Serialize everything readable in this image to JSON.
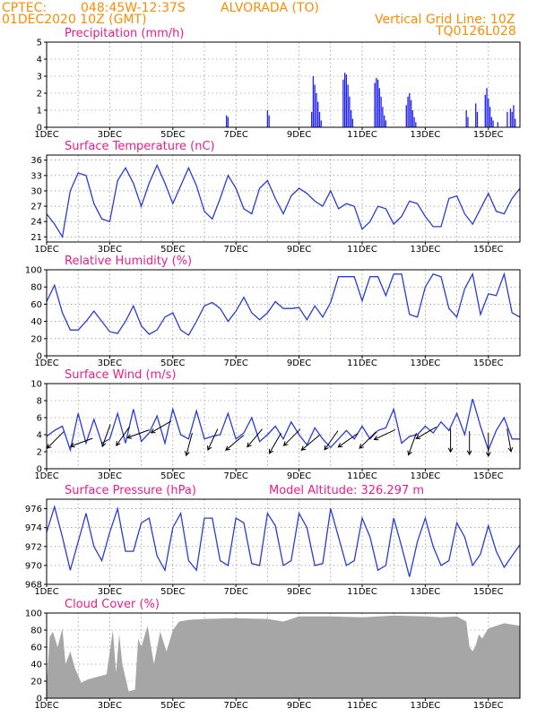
{
  "header": {
    "source_prefix": "CPTEC:",
    "coords": "048:45W-12:37S",
    "location": "ALVORADA (TO)",
    "run": "01DEC2020 10Z (GMT)",
    "grid_note": "Vertical Grid Line: 10Z",
    "code": "TQ0126L028"
  },
  "model_altitude": "Model Altitude: 326.297 m",
  "x_ticks": [
    "1DEC",
    "3DEC",
    "5DEC",
    "7DEC",
    "9DEC",
    "11DEC",
    "13DEC",
    "15DEC"
  ],
  "x_range_days": [
    0,
    15
  ],
  "colors": {
    "series": "#2a3cd8",
    "precip": "#2424f0",
    "cloud": "#a6a6a6",
    "title": "#ee1c8c",
    "header": "#ff8c00"
  },
  "chart_data": [
    {
      "id": "precip",
      "type": "bar",
      "title": "Precipitation (mm/h)",
      "ylim": [
        0,
        5
      ],
      "yticks": [
        0,
        1,
        2,
        3,
        4,
        5
      ],
      "x": [
        5.7,
        5.75,
        7.0,
        7.05,
        8.4,
        8.45,
        8.5,
        8.55,
        8.6,
        8.65,
        8.7,
        9.4,
        9.45,
        9.5,
        9.55,
        9.6,
        9.65,
        9.7,
        10.4,
        10.45,
        10.5,
        10.55,
        10.6,
        10.65,
        10.7,
        10.75,
        11.4,
        11.45,
        11.5,
        11.55,
        11.6,
        11.65,
        11.7,
        13.3,
        13.35,
        13.6,
        13.65,
        13.9,
        13.95,
        14.0,
        14.05,
        14.1,
        14.15,
        14.3,
        14.6,
        14.7,
        14.75,
        14.8,
        14.85
      ],
      "values": [
        0.7,
        0.6,
        1.0,
        0.7,
        0.9,
        3.0,
        2.5,
        2.0,
        1.5,
        0.9,
        0.4,
        2.8,
        3.2,
        3.1,
        2.5,
        1.8,
        1.0,
        0.5,
        2.6,
        2.9,
        2.8,
        2.3,
        1.8,
        1.2,
        0.7,
        0.4,
        1.3,
        1.8,
        2.0,
        1.6,
        1.0,
        0.6,
        0.3,
        1.0,
        0.6,
        1.4,
        0.9,
        1.9,
        2.3,
        1.7,
        1.2,
        0.6,
        0.4,
        0.3,
        0.9,
        1.1,
        0.9,
        1.3,
        0.5
      ]
    },
    {
      "id": "temp",
      "type": "line",
      "title": "Surface Temperature (nC)",
      "ylim": [
        20,
        37
      ],
      "yticks": [
        21,
        24,
        27,
        30,
        33,
        36
      ],
      "x": [
        0,
        0.25,
        0.5,
        0.75,
        1,
        1.25,
        1.5,
        1.75,
        2,
        2.25,
        2.5,
        2.75,
        3,
        3.25,
        3.5,
        3.75,
        4,
        4.25,
        4.5,
        4.75,
        5,
        5.25,
        5.5,
        5.75,
        6,
        6.25,
        6.5,
        6.75,
        7,
        7.25,
        7.5,
        7.75,
        8,
        8.25,
        8.5,
        8.75,
        9,
        9.25,
        9.5,
        9.75,
        10,
        10.25,
        10.5,
        10.75,
        11,
        11.25,
        11.5,
        11.75,
        12,
        12.25,
        12.5,
        12.75,
        13,
        13.25,
        13.5,
        13.75,
        14,
        14.25,
        14.5,
        14.75,
        15
      ],
      "values": [
        25.5,
        23.5,
        21,
        30,
        33.5,
        33,
        27.5,
        24.5,
        24,
        32,
        34.5,
        31.5,
        27,
        31.5,
        35,
        31.5,
        27.5,
        31,
        34.5,
        31,
        26,
        24.5,
        28.5,
        33,
        30.5,
        26.5,
        25.5,
        30.5,
        32,
        28.5,
        25.5,
        29,
        30.5,
        29.5,
        28,
        27,
        30,
        26.5,
        27.5,
        27,
        22.5,
        24,
        27,
        26.5,
        23.5,
        25,
        28,
        27.5,
        25,
        23,
        23,
        28.5,
        29,
        25.5,
        23.5,
        26.5,
        29.5,
        26,
        25.5,
        28.5,
        30.5
      ]
    },
    {
      "id": "rh",
      "type": "line",
      "title": "Relative Humidity (%)",
      "ylim": [
        0,
        100
      ],
      "yticks": [
        0,
        20,
        40,
        60,
        80,
        100
      ],
      "x": [
        0,
        0.25,
        0.5,
        0.75,
        1,
        1.25,
        1.5,
        1.75,
        2,
        2.25,
        2.5,
        2.75,
        3,
        3.25,
        3.5,
        3.75,
        4,
        4.25,
        4.5,
        4.75,
        5,
        5.25,
        5.5,
        5.75,
        6,
        6.25,
        6.5,
        6.75,
        7,
        7.25,
        7.5,
        7.75,
        8,
        8.25,
        8.5,
        8.75,
        9,
        9.25,
        9.5,
        9.75,
        10,
        10.25,
        10.5,
        10.75,
        11,
        11.25,
        11.5,
        11.75,
        12,
        12.25,
        12.5,
        12.75,
        13,
        13.25,
        13.5,
        13.75,
        14,
        14.25,
        14.5,
        14.75,
        15
      ],
      "values": [
        63,
        82,
        50,
        30,
        30,
        40,
        52,
        40,
        28,
        26,
        40,
        58,
        35,
        25,
        30,
        45,
        50,
        30,
        24,
        40,
        58,
        62,
        55,
        40,
        52,
        68,
        50,
        42,
        50,
        63,
        55,
        55,
        56,
        42,
        58,
        45,
        62,
        92,
        92,
        92,
        64,
        92,
        92,
        70,
        95,
        95,
        48,
        45,
        80,
        95,
        92,
        55,
        45,
        78,
        95,
        48,
        72,
        70,
        95,
        50,
        45
      ]
    },
    {
      "id": "wind",
      "type": "line",
      "title": "Surface Wind (m/s)",
      "ylim": [
        0,
        10
      ],
      "yticks": [
        0,
        2,
        4,
        6,
        8,
        10
      ],
      "x": [
        0,
        0.25,
        0.5,
        0.75,
        1,
        1.25,
        1.5,
        1.75,
        2,
        2.25,
        2.5,
        2.75,
        3,
        3.25,
        3.5,
        3.75,
        4,
        4.25,
        4.5,
        4.75,
        5,
        5.25,
        5.5,
        5.75,
        6,
        6.25,
        6.5,
        6.75,
        7,
        7.25,
        7.5,
        7.75,
        8,
        8.25,
        8.5,
        8.75,
        9,
        9.25,
        9.5,
        9.75,
        10,
        10.25,
        10.5,
        10.75,
        11,
        11.25,
        11.5,
        11.75,
        12,
        12.25,
        12.5,
        12.75,
        13,
        13.25,
        13.5,
        13.75,
        14,
        14.25,
        14.5,
        14.75,
        15
      ],
      "values": [
        3.8,
        4.5,
        5.0,
        2.2,
        6.5,
        3.0,
        5.8,
        3.0,
        3.5,
        6.5,
        3.0,
        7.0,
        3.2,
        4.2,
        6.2,
        3.0,
        7.0,
        4.0,
        3.5,
        6.8,
        3.5,
        3.8,
        4.0,
        6.5,
        3.5,
        4.2,
        6.0,
        3.2,
        4.0,
        5.0,
        3.5,
        5.5,
        4.0,
        2.8,
        4.8,
        3.5,
        2.5,
        3.5,
        4.5,
        3.5,
        5.0,
        3.5,
        4.5,
        4.8,
        7.0,
        3.0,
        3.8,
        4.0,
        5.0,
        4.2,
        5.5,
        4.5,
        6.5,
        4.0,
        8.2,
        5.0,
        2.2,
        4.5,
        6.0,
        3.5,
        3.5
      ]
    },
    {
      "id": "pres",
      "type": "line",
      "title": "Surface Pressure (hPa)",
      "ylim": [
        968,
        977
      ],
      "yticks": [
        968,
        970,
        972,
        974,
        976
      ],
      "x": [
        0,
        0.25,
        0.5,
        0.75,
        1,
        1.25,
        1.5,
        1.75,
        2,
        2.25,
        2.5,
        2.75,
        3,
        3.25,
        3.5,
        3.75,
        4,
        4.25,
        4.5,
        4.75,
        5,
        5.25,
        5.5,
        5.75,
        6,
        6.25,
        6.5,
        6.75,
        7,
        7.25,
        7.5,
        7.75,
        8,
        8.25,
        8.5,
        8.75,
        9,
        9.25,
        9.5,
        9.75,
        10,
        10.25,
        10.5,
        10.75,
        11,
        11.25,
        11.5,
        11.75,
        12,
        12.25,
        12.5,
        12.75,
        13,
        13.25,
        13.5,
        13.75,
        14,
        14.25,
        14.5,
        14.75,
        15
      ],
      "values": [
        973.5,
        976.2,
        973.0,
        969.5,
        972.5,
        975.5,
        972.0,
        970.5,
        973.5,
        976.0,
        971.5,
        971.5,
        974.5,
        975.0,
        971.0,
        969.5,
        974.0,
        975.5,
        970.5,
        969.5,
        975.0,
        975.0,
        970.5,
        970.0,
        975.0,
        974.5,
        970.2,
        970.0,
        975.5,
        974.2,
        970.0,
        970.5,
        975.5,
        974.0,
        970.0,
        970.2,
        976.0,
        973.0,
        970.0,
        970.5,
        975.0,
        973.0,
        969.5,
        970.0,
        975.0,
        972.0,
        968.8,
        972.5,
        975.0,
        972.0,
        970.0,
        970.5,
        974.5,
        973.0,
        970.0,
        971.2,
        974.2,
        971.5,
        969.8,
        971.0,
        972.2
      ]
    },
    {
      "id": "cloud",
      "type": "area",
      "title": "Cloud Cover (%)",
      "ylim": [
        0,
        100
      ],
      "yticks": [
        0,
        20,
        40,
        60,
        80,
        100
      ],
      "x": [
        0,
        0.1,
        0.2,
        0.35,
        0.5,
        0.6,
        0.75,
        0.9,
        1.1,
        1.3,
        1.6,
        1.9,
        2.1,
        2.2,
        2.3,
        2.4,
        2.6,
        2.8,
        2.9,
        3.0,
        3.2,
        3.4,
        3.6,
        3.8,
        4.0,
        4.2,
        4.5,
        5.0,
        6.0,
        7.0,
        7.5,
        8.0,
        9.0,
        10.0,
        11.0,
        12.0,
        12.5,
        13.0,
        13.3,
        13.4,
        13.5,
        13.6,
        13.7,
        13.8,
        14.0,
        14.5,
        15.0
      ],
      "values": [
        15,
        72,
        78,
        60,
        82,
        40,
        55,
        35,
        18,
        22,
        25,
        28,
        80,
        30,
        75,
        40,
        8,
        10,
        70,
        60,
        85,
        40,
        78,
        55,
        80,
        90,
        92,
        93,
        94,
        93,
        90,
        96,
        96,
        95,
        97,
        96,
        95,
        96,
        90,
        60,
        55,
        62,
        75,
        70,
        82,
        88,
        85
      ]
    }
  ],
  "wind_vectors": {
    "x": [
      0.5,
      1.4,
      2.0,
      2.6,
      3.2,
      3.9,
      4.6,
      5.4,
      6.2,
      6.8,
      7.4,
      8.0,
      8.6,
      9.2,
      9.8,
      10.4,
      11.0,
      11.7,
      12.3,
      12.8,
      13.4,
      14.0,
      14.6
    ],
    "speed": [
      4.2,
      3.5,
      5.0,
      4.8,
      4.5,
      5.5,
      4.0,
      4.5,
      3.8,
      4.5,
      4.0,
      4.5,
      3.8,
      4.3,
      4.0,
      4.2,
      4.5,
      4.0,
      4.8,
      4.5,
      4.2,
      4.0,
      4.5
    ],
    "dir_deg": [
      225,
      250,
      200,
      215,
      250,
      240,
      195,
      205,
      230,
      220,
      210,
      225,
      230,
      215,
      235,
      225,
      245,
      200,
      240,
      180,
      180,
      180,
      170
    ]
  }
}
